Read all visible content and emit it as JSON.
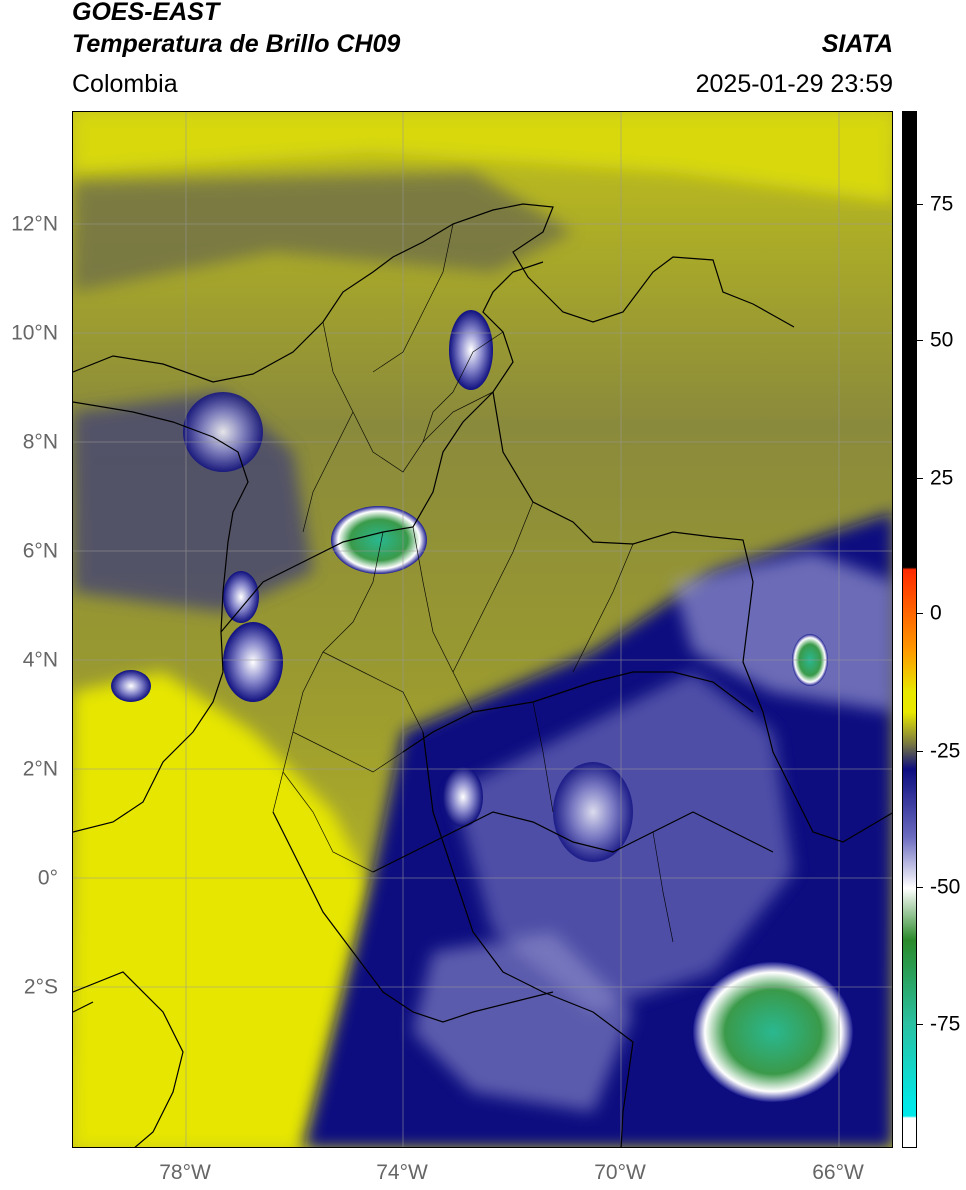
{
  "header": {
    "satellite": "GOES-EAST",
    "product": "Temperatura de Brillo CH09",
    "region": "Colombia",
    "source": "SIATA",
    "datetime": "2025-01-29 23:59"
  },
  "axes": {
    "lat_labels": [
      "12°N",
      "10°N",
      "8°N",
      "6°N",
      "4°N",
      "2°N",
      "0°",
      "2°S"
    ],
    "lon_labels": [
      "78°W",
      "74°W",
      "70°W",
      "66°W"
    ]
  },
  "colorbar": {
    "ticks": [
      "75",
      "50",
      "25",
      "0",
      "-25",
      "-50",
      "-75"
    ],
    "colors": {
      "black": "#000000",
      "red": "#ff2a00",
      "orange": "#ff9900",
      "yellow": "#e8e800",
      "olive": "#7a7a40",
      "navy": "#0d0d80",
      "white": "#ffffff",
      "green": "#2a8a2a",
      "teal": "#2ac0a0",
      "cyan": "#00e8e8"
    }
  }
}
